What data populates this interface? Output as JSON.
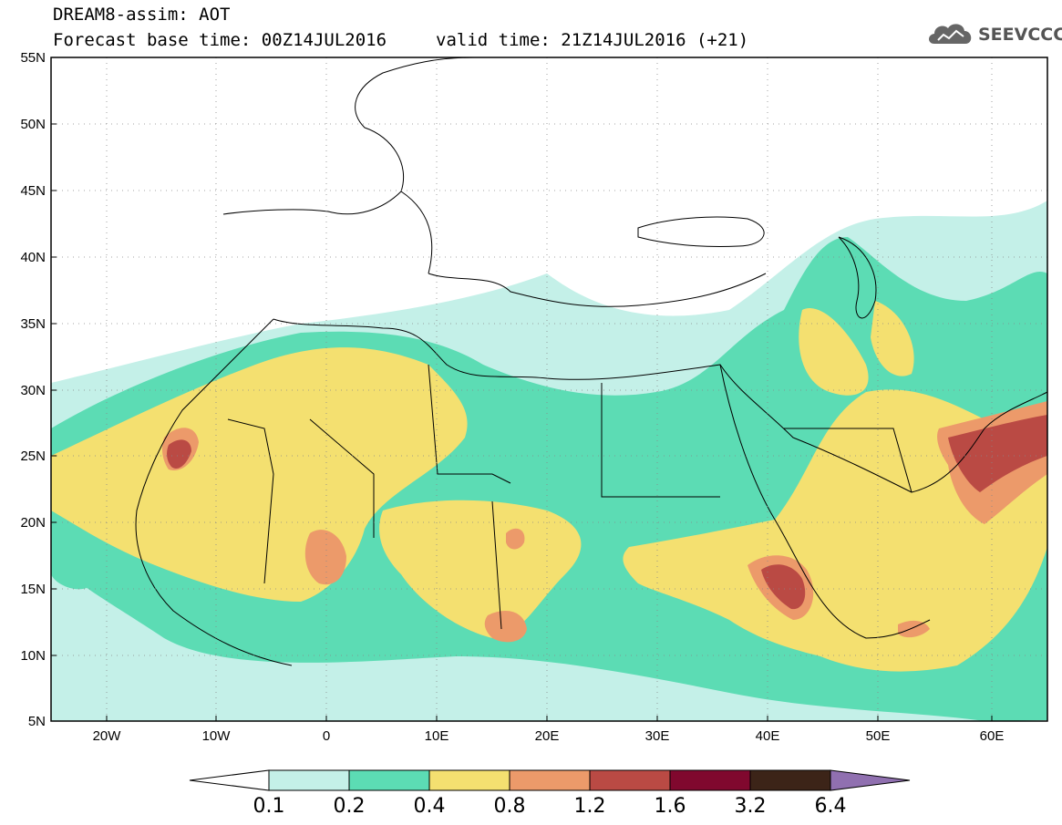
{
  "header": {
    "title": "DREAM8-assim: AOT",
    "base_time": "Forecast base time: 00Z14JUL2016",
    "valid_time": "valid time: 21Z14JUL2016 (+21)",
    "logo_text": "SEEVCCC"
  },
  "map": {
    "lon_range": [
      -25,
      65
    ],
    "lat_range": [
      5,
      55
    ],
    "lat_ticks": [
      "55N",
      "50N",
      "45N",
      "40N",
      "35N",
      "30N",
      "25N",
      "20N",
      "15N",
      "10N",
      "5N"
    ],
    "lon_ticks": [
      "20W",
      "10W",
      "0",
      "10E",
      "20E",
      "30E",
      "40E",
      "50E",
      "60E"
    ],
    "grid": "dotted"
  },
  "colorbar": {
    "labels": [
      "0.1",
      "0.2",
      "0.4",
      "0.8",
      "1.2",
      "1.6",
      "3.2",
      "6.4"
    ],
    "colors": [
      "#ffffff",
      "#c4f0e8",
      "#5cdcb4",
      "#f4e070",
      "#ec9a6a",
      "#ba4a44",
      "#80082e",
      "#3c2418",
      "#9070b0"
    ]
  }
}
